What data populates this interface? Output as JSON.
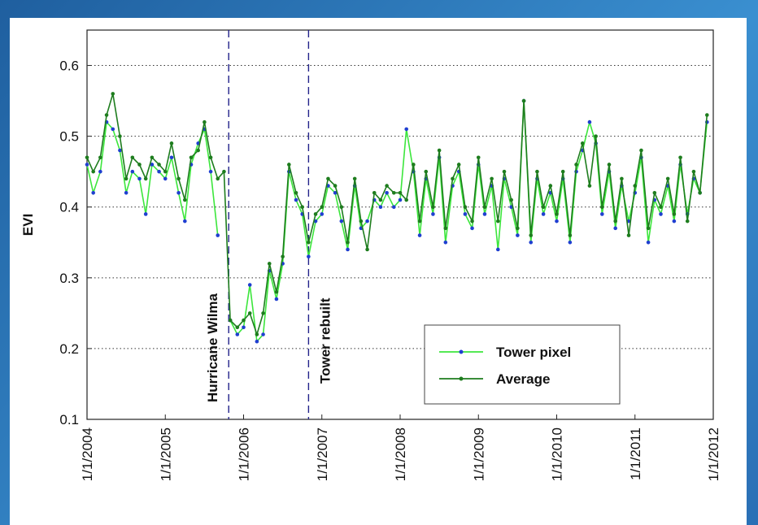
{
  "chart_data": {
    "type": "line",
    "y_label": "EVI",
    "x": [
      2004.0,
      2004.08,
      2004.17,
      2004.25,
      2004.33,
      2004.42,
      2004.5,
      2004.58,
      2004.67,
      2004.75,
      2004.83,
      2004.92,
      2005.0,
      2005.08,
      2005.17,
      2005.25,
      2005.33,
      2005.42,
      2005.5,
      2005.58,
      2005.67,
      2005.75,
      2005.83,
      2005.92,
      2006.0,
      2006.08,
      2006.17,
      2006.25,
      2006.33,
      2006.42,
      2006.5,
      2006.58,
      2006.67,
      2006.75,
      2006.83,
      2006.92,
      2007.0,
      2007.08,
      2007.17,
      2007.25,
      2007.33,
      2007.42,
      2007.5,
      2007.58,
      2007.67,
      2007.75,
      2007.83,
      2007.92,
      2008.0,
      2008.08,
      2008.17,
      2008.25,
      2008.33,
      2008.42,
      2008.5,
      2008.58,
      2008.67,
      2008.75,
      2008.83,
      2008.92,
      2009.0,
      2009.08,
      2009.17,
      2009.25,
      2009.33,
      2009.42,
      2009.5,
      2009.58,
      2009.67,
      2009.75,
      2009.83,
      2009.92,
      2010.0,
      2010.08,
      2010.17,
      2010.25,
      2010.33,
      2010.42,
      2010.5,
      2010.58,
      2010.67,
      2010.75,
      2010.83,
      2010.92,
      2011.0,
      2011.08,
      2011.17,
      2011.25,
      2011.33,
      2011.42,
      2011.5,
      2011.58,
      2011.67,
      2011.75,
      2011.83,
      2011.92
    ],
    "series": [
      {
        "name": "Tower pixel",
        "color": "#3ce63c",
        "marker_color": "#1f3fd0",
        "values": [
          0.46,
          0.42,
          0.45,
          0.52,
          0.51,
          0.48,
          0.42,
          0.45,
          0.44,
          0.39,
          0.46,
          0.45,
          0.44,
          0.47,
          0.42,
          0.38,
          0.46,
          0.49,
          0.51,
          0.45,
          0.36,
          null,
          0.24,
          0.22,
          0.23,
          0.29,
          0.21,
          0.22,
          0.31,
          0.27,
          0.32,
          0.45,
          0.41,
          0.39,
          0.33,
          0.38,
          0.39,
          0.43,
          0.42,
          0.38,
          0.34,
          0.43,
          0.37,
          0.38,
          0.41,
          0.4,
          0.42,
          0.4,
          0.41,
          0.51,
          0.45,
          0.36,
          0.44,
          0.39,
          0.47,
          0.35,
          0.43,
          0.45,
          0.39,
          0.37,
          0.46,
          0.39,
          0.43,
          0.34,
          0.44,
          0.4,
          0.36,
          0.55,
          0.35,
          0.44,
          0.39,
          0.42,
          0.38,
          0.44,
          0.35,
          0.45,
          0.48,
          0.52,
          0.49,
          0.39,
          0.45,
          0.37,
          0.43,
          0.38,
          0.42,
          0.47,
          0.35,
          0.41,
          0.39,
          0.43,
          0.38,
          0.46,
          0.39,
          0.44,
          0.42,
          0.52
        ]
      },
      {
        "name": "Average",
        "color": "#1e7d1e",
        "marker_color": "#1e7d1e",
        "values": [
          0.47,
          0.45,
          0.47,
          0.53,
          0.56,
          0.5,
          0.44,
          0.47,
          0.46,
          0.44,
          0.47,
          0.46,
          0.45,
          0.49,
          0.44,
          0.41,
          0.47,
          0.48,
          0.52,
          0.47,
          0.44,
          0.45,
          0.24,
          0.23,
          0.24,
          0.25,
          0.22,
          0.25,
          0.32,
          0.28,
          0.33,
          0.46,
          0.42,
          0.4,
          0.35,
          0.39,
          0.4,
          0.44,
          0.43,
          0.4,
          0.35,
          0.44,
          0.38,
          0.34,
          0.42,
          0.41,
          0.43,
          0.42,
          0.42,
          0.41,
          0.46,
          0.38,
          0.45,
          0.4,
          0.48,
          0.37,
          0.44,
          0.46,
          0.4,
          0.38,
          0.47,
          0.4,
          0.44,
          0.38,
          0.45,
          0.41,
          0.37,
          0.55,
          0.36,
          0.45,
          0.4,
          0.43,
          0.39,
          0.45,
          0.36,
          0.46,
          0.49,
          0.43,
          0.5,
          0.4,
          0.46,
          0.38,
          0.44,
          0.36,
          0.43,
          0.48,
          0.37,
          0.42,
          0.4,
          0.44,
          0.39,
          0.47,
          0.38,
          0.45,
          0.42,
          0.53
        ]
      }
    ],
    "xlim": [
      2004,
      2012
    ],
    "xticks": [
      {
        "value": 2004,
        "label": "1/1/2004"
      },
      {
        "value": 2005,
        "label": "1/1/2005"
      },
      {
        "value": 2006,
        "label": "1/1/2006"
      },
      {
        "value": 2007,
        "label": "1/1/2007"
      },
      {
        "value": 2008,
        "label": "1/1/2008"
      },
      {
        "value": 2009,
        "label": "1/1/2009"
      },
      {
        "value": 2010,
        "label": "1/1/2010"
      },
      {
        "value": 2011,
        "label": "1/1/2011"
      },
      {
        "value": 2012,
        "label": "1/1/2012"
      }
    ],
    "ylim": [
      0.1,
      0.65
    ],
    "yticks": [
      0.1,
      0.2,
      0.3,
      0.4,
      0.5,
      0.6
    ],
    "grid": true,
    "legend": "lower right",
    "annotations": [
      {
        "text": "Hurricane Wilma",
        "x": 2005.81,
        "color": "#22228a"
      },
      {
        "text": "Tower rebuilt",
        "x": 2006.83,
        "color": "#22228a"
      }
    ]
  }
}
